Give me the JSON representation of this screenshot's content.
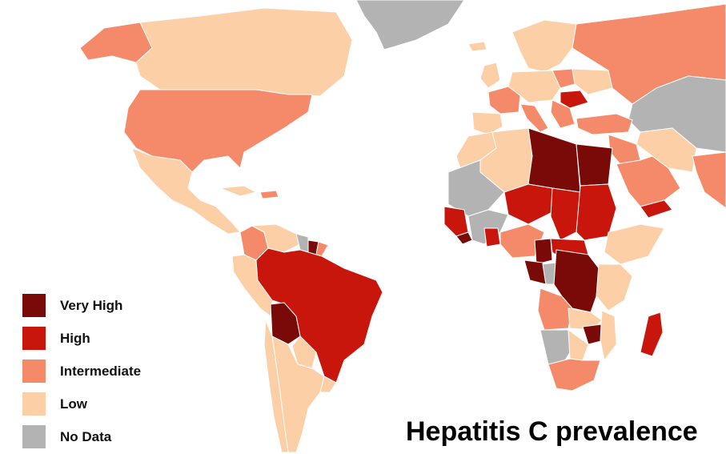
{
  "map": {
    "title": "Hepatitis C prevalence",
    "legend": [
      {
        "label": "Very High",
        "color": "#7a0a08"
      },
      {
        "label": "High",
        "color": "#c8160d"
      },
      {
        "label": "Intermediate",
        "color": "#f58a6a"
      },
      {
        "label": "Low",
        "color": "#fccfa6"
      },
      {
        "label": "No Data",
        "color": "#b3b3b3"
      }
    ]
  }
}
